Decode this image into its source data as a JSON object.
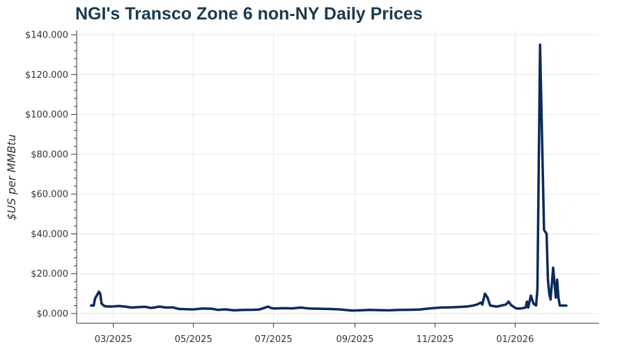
{
  "chart_data": {
    "type": "line",
    "title": "NGI's Transco Zone 6 non-NY Daily Prices",
    "xlabel": "",
    "ylabel": "$US per MMBtu",
    "ylim": [
      0,
      140
    ],
    "y_ticks": [
      0,
      20,
      40,
      60,
      80,
      100,
      120,
      140
    ],
    "y_tick_labels": [
      "$0.000",
      "$20.000",
      "$40.000",
      "$60.000",
      "$80.000",
      "$100.000",
      "$120.000",
      "$140.000"
    ],
    "x_range": [
      "2025-02-01",
      "2026-03-06"
    ],
    "x_ticks": [
      "2025-03-01",
      "2025-05-01",
      "2025-07-01",
      "2025-09-01",
      "2025-11-01",
      "2026-01-01"
    ],
    "x_tick_labels": [
      "03/2025",
      "05/2025",
      "07/2025",
      "09/2025",
      "11/2025",
      "01/2026"
    ],
    "grid": true,
    "legend": "none",
    "line_color": "#0b2a5c",
    "series": [
      {
        "x": [
          "2025-02-12",
          "2025-02-14",
          "2025-02-15",
          "2025-02-18",
          "2025-02-19",
          "2025-02-20",
          "2025-02-22",
          "2025-02-25",
          "2025-03-01",
          "2025-03-05",
          "2025-03-10",
          "2025-03-15",
          "2025-03-20",
          "2025-03-25",
          "2025-03-30",
          "2025-04-05",
          "2025-04-10",
          "2025-04-15",
          "2025-04-20",
          "2025-04-25",
          "2025-05-01",
          "2025-05-08",
          "2025-05-15",
          "2025-05-20",
          "2025-05-25",
          "2025-06-01",
          "2025-06-08",
          "2025-06-15",
          "2025-06-20",
          "2025-06-27",
          "2025-06-29",
          "2025-07-02",
          "2025-07-08",
          "2025-07-15",
          "2025-07-22",
          "2025-07-28",
          "2025-08-05",
          "2025-08-12",
          "2025-08-20",
          "2025-08-30",
          "2025-09-05",
          "2025-09-12",
          "2025-09-20",
          "2025-09-27",
          "2025-10-05",
          "2025-10-12",
          "2025-10-20",
          "2025-10-28",
          "2025-11-05",
          "2025-11-12",
          "2025-11-20",
          "2025-11-26",
          "2025-11-30",
          "2025-12-03",
          "2025-12-05",
          "2025-12-06",
          "2025-12-07",
          "2025-12-09",
          "2025-12-11",
          "2025-12-13",
          "2025-12-18",
          "2025-12-25",
          "2025-12-27",
          "2025-12-29",
          "2025-12-30",
          "2026-01-02",
          "2026-01-05",
          "2026-01-09",
          "2026-01-10",
          "2026-01-11",
          "2026-01-13",
          "2026-01-15",
          "2026-01-17",
          "2026-01-18",
          "2026-01-20",
          "2026-01-23",
          "2026-01-25",
          "2026-01-26",
          "2026-01-27",
          "2026-01-28",
          "2026-01-30",
          "2026-02-01",
          "2026-02-02",
          "2026-02-03",
          "2026-02-04",
          "2026-02-06",
          "2026-02-07",
          "2026-02-09"
        ],
        "y": [
          4,
          4,
          7.5,
          11,
          10,
          5,
          3.8,
          3.5,
          3.6,
          3.8,
          3.5,
          3,
          3.2,
          3.4,
          2.8,
          3.5,
          3,
          3.1,
          2.3,
          2.2,
          2.1,
          2.5,
          2.4,
          1.8,
          2.1,
          1.6,
          1.8,
          1.9,
          2.0,
          3.5,
          2.8,
          2.5,
          2.7,
          2.6,
          3.0,
          2.5,
          2.4,
          2.3,
          2.1,
          1.5,
          1.6,
          1.8,
          1.7,
          1.6,
          1.8,
          1.9,
          2.0,
          2.6,
          3.0,
          3.1,
          3.3,
          3.6,
          4.0,
          4.5,
          5.2,
          5.5,
          4.5,
          10,
          8,
          4,
          3.5,
          4.5,
          6,
          4.2,
          3.8,
          2.5,
          2.5,
          3.0,
          6,
          3,
          9,
          5,
          4,
          12,
          135,
          42,
          40,
          17,
          10,
          7,
          23,
          8,
          17,
          8,
          4,
          4,
          4,
          4
        ]
      }
    ]
  }
}
